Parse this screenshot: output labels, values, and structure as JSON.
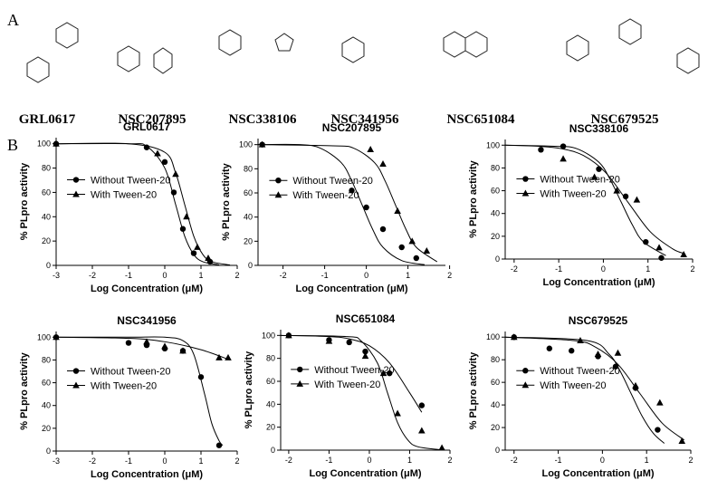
{
  "panels": [
    "A",
    "B"
  ],
  "compounds": [
    "GRL0617",
    "NSC207895",
    "NSC338106",
    "NSC341956",
    "NSC651084",
    "NSC679525"
  ],
  "chart_data": [
    {
      "type": "dose-response",
      "title": "GRL0617",
      "xlabel": "Log Concentration (μM)",
      "ylabel": "% PLpro activity",
      "xlim": [
        -3,
        2
      ],
      "xticks": [
        -3,
        -2,
        -1,
        0,
        1,
        2
      ],
      "ylim": [
        0,
        105
      ],
      "yticks": [
        0,
        20,
        40,
        60,
        80,
        100
      ],
      "legend": "center left",
      "series": [
        {
          "name": "Without Tween-20",
          "marker": "circle",
          "color": "#000000",
          "x": [
            -3,
            -0.5,
            0,
            0.25,
            0.5,
            0.8,
            1.25
          ],
          "values": [
            100,
            97,
            85,
            60,
            30,
            10,
            3
          ],
          "curve_x": [
            -3,
            -1,
            -0.5,
            0,
            0.3,
            0.55,
            0.8,
            1.05,
            1.5
          ],
          "curve_values": [
            100,
            100,
            98,
            80,
            50,
            24,
            9,
            3,
            0.4
          ]
        },
        {
          "name": "With Tween-20",
          "marker": "triangle",
          "color": "#000000",
          "x": [
            -3,
            -0.2,
            0.3,
            0.6,
            0.9,
            1.2
          ],
          "values": [
            100,
            92,
            75,
            40,
            15,
            6
          ],
          "curve_x": [
            -3,
            -1,
            0,
            0.3,
            0.55,
            0.8,
            1.05,
            1.3,
            1.8
          ],
          "curve_values": [
            100,
            100,
            93,
            76,
            50,
            24,
            9,
            3,
            0.3
          ]
        }
      ]
    },
    {
      "type": "dose-response",
      "title": "NSC207895",
      "xlabel": "Log Concentration (μM)",
      "ylabel": "% PLpro activity",
      "xlim": [
        -2.6,
        1.9
      ],
      "xticks": [
        -2,
        -1,
        0,
        1,
        2
      ],
      "ylim": [
        0,
        105
      ],
      "yticks": [
        0,
        20,
        40,
        60,
        80,
        100
      ],
      "legend": "center left",
      "series": [
        {
          "name": "Without Tween-20",
          "marker": "circle",
          "color": "#000000",
          "x": [
            -2.5,
            -0.35,
            0,
            0.4,
            0.85,
            1.2
          ],
          "values": [
            100,
            62,
            48,
            30,
            15,
            6
          ],
          "curve_x": [
            -2.6,
            -1.6,
            -1.1,
            -0.6,
            -0.35,
            -0.1,
            0.15,
            0.4,
            0.85,
            1.4
          ],
          "curve_values": [
            100,
            100,
            97,
            85,
            70,
            50,
            30,
            15,
            4,
            0.6
          ]
        },
        {
          "name": "With Tween-20",
          "marker": "triangle",
          "color": "#000000",
          "x": [
            -2.5,
            0.1,
            0.4,
            0.75,
            1.1,
            1.45
          ],
          "values": [
            100,
            96,
            84,
            45,
            20,
            12
          ],
          "curve_x": [
            -2.6,
            -0.8,
            -0.3,
            0.2,
            0.45,
            0.7,
            0.95,
            1.2,
            1.7
          ],
          "curve_values": [
            100,
            99,
            97,
            85,
            70,
            50,
            30,
            15,
            3
          ]
        }
      ]
    },
    {
      "type": "dose-response",
      "title": "NSC338106",
      "xlabel": "Log Concentration (μM)",
      "ylabel": "% PLpro activity",
      "xlim": [
        -2.2,
        2
      ],
      "xticks": [
        -2,
        -1,
        0,
        1,
        2
      ],
      "ylim": [
        0,
        105
      ],
      "yticks": [
        0,
        20,
        40,
        60,
        80,
        100
      ],
      "legend": "center left",
      "series": [
        {
          "name": "Without Tween-20",
          "marker": "circle",
          "color": "#000000",
          "x": [
            -1.4,
            -0.9,
            -0.1,
            0.5,
            0.95,
            1.3
          ],
          "values": [
            96,
            99,
            79,
            55,
            15,
            1
          ],
          "curve_x": [
            -2.2,
            -1.1,
            -0.6,
            -0.1,
            0.15,
            0.4,
            0.65,
            0.9,
            1.4
          ],
          "curve_values": [
            100,
            99,
            97,
            85,
            70,
            50,
            30,
            15,
            3
          ]
        },
        {
          "name": "With Tween-20",
          "marker": "triangle",
          "color": "#000000",
          "x": [
            -0.9,
            -0.2,
            0.3,
            0.75,
            1.25,
            1.8
          ],
          "values": [
            88,
            72,
            60,
            52,
            10,
            4
          ],
          "curve_x": [
            -2.2,
            -1.45,
            -0.95,
            -0.45,
            0.05,
            0.55,
            1.05,
            1.55,
            1.8
          ],
          "curve_values": [
            100,
            99,
            97,
            91,
            76,
            50,
            24,
            9,
            5
          ]
        }
      ]
    },
    {
      "type": "dose-response",
      "title": "NSC341956",
      "xlabel": "Log Concentration (μM)",
      "ylabel": "% PLpro activity",
      "xlim": [
        -3,
        2
      ],
      "xticks": [
        -3,
        -2,
        -1,
        0,
        1,
        2
      ],
      "ylim": [
        0,
        105
      ],
      "yticks": [
        0,
        20,
        40,
        60,
        80,
        100
      ],
      "legend": "center left",
      "series": [
        {
          "name": "Without Tween-20",
          "marker": "circle",
          "color": "#000000",
          "x": [
            -3,
            -1,
            -0.5,
            0,
            0.5,
            1,
            1.5
          ],
          "values": [
            100,
            95,
            93,
            90,
            88,
            65,
            5
          ],
          "curve_x": [
            -3,
            -1,
            0,
            0.5,
            0.8,
            1.1,
            1.3,
            1.5,
            1.6
          ],
          "curve_values": [
            100,
            100,
            100,
            97,
            85,
            50,
            24,
            9,
            5
          ]
        },
        {
          "name": "With Tween-20",
          "marker": "triangle",
          "color": "#000000",
          "x": [
            -3,
            -0.5,
            0,
            0.5,
            1.5,
            1.75
          ],
          "values": [
            100,
            96,
            92,
            88,
            82,
            82
          ],
          "curve_x": [
            -3,
            -1,
            0,
            1,
            1.8
          ],
          "curve_values": [
            100,
            99,
            96,
            89,
            80
          ]
        }
      ]
    },
    {
      "type": "dose-response",
      "title": "NSC651084",
      "xlabel": "Log Concentration (μM)",
      "ylabel": "% PLpro activity",
      "xlim": [
        -2.2,
        2
      ],
      "xticks": [
        -2,
        -1,
        0,
        1,
        2
      ],
      "ylim": [
        0,
        105
      ],
      "yticks": [
        0,
        20,
        40,
        60,
        80,
        100
      ],
      "legend": "center left",
      "series": [
        {
          "name": "Without Tween-20",
          "marker": "circle",
          "color": "#000000",
          "x": [
            -2,
            -1,
            -0.5,
            -0.1,
            0.5,
            1.3
          ],
          "values": [
            100,
            96,
            94,
            86,
            67,
            39
          ],
          "curve_x": [
            -2.2,
            -1,
            -0.5,
            0,
            0.5,
            1,
            1.3
          ],
          "curve_values": [
            100,
            99,
            97,
            91,
            76,
            50,
            33
          ]
        },
        {
          "name": "With Tween-20",
          "marker": "triangle",
          "color": "#000000",
          "x": [
            -2,
            -1,
            -0.1,
            0.35,
            0.7,
            1.3,
            1.8
          ],
          "values": [
            100,
            95,
            82,
            67,
            32,
            17,
            2
          ],
          "curve_x": [
            -2.2,
            -0.55,
            -0.2,
            0.2,
            0.45,
            0.7,
            0.95,
            1.2,
            1.8
          ],
          "curve_values": [
            100,
            99,
            95,
            76,
            50,
            24,
            9,
            3,
            0.2
          ]
        }
      ]
    },
    {
      "type": "dose-response",
      "title": "NSC679525",
      "xlabel": "Log Concentration (μM)",
      "ylabel": "% PLpro activity",
      "xlim": [
        -2.2,
        2
      ],
      "xticks": [
        -2,
        -1,
        0,
        1,
        2
      ],
      "ylim": [
        0,
        105
      ],
      "yticks": [
        0,
        20,
        40,
        60,
        80,
        100
      ],
      "legend": "center left",
      "series": [
        {
          "name": "Without Tween-20",
          "marker": "circle",
          "color": "#000000",
          "x": [
            -2,
            -1.2,
            -0.7,
            -0.1,
            0.3,
            0.75,
            1.25
          ],
          "values": [
            100,
            90,
            88,
            83,
            74,
            55,
            18
          ],
          "curve_x": [
            -2.2,
            -0.35,
            0.15,
            0.4,
            0.65,
            0.9,
            1.15,
            1.4
          ],
          "curve_values": [
            100,
            97,
            85,
            70,
            50,
            30,
            15,
            6
          ]
        },
        {
          "name": "With Tween-20",
          "marker": "triangle",
          "color": "#000000",
          "x": [
            -2,
            -0.5,
            -0.1,
            0.35,
            0.75,
            1.3,
            1.8
          ],
          "values": [
            100,
            97,
            85,
            86,
            57,
            42,
            8
          ],
          "curve_x": [
            -2.2,
            -0.65,
            -0.15,
            0.35,
            0.85,
            1.35,
            1.85
          ],
          "curve_values": [
            100,
            97,
            91,
            76,
            50,
            24,
            9
          ]
        }
      ]
    }
  ]
}
